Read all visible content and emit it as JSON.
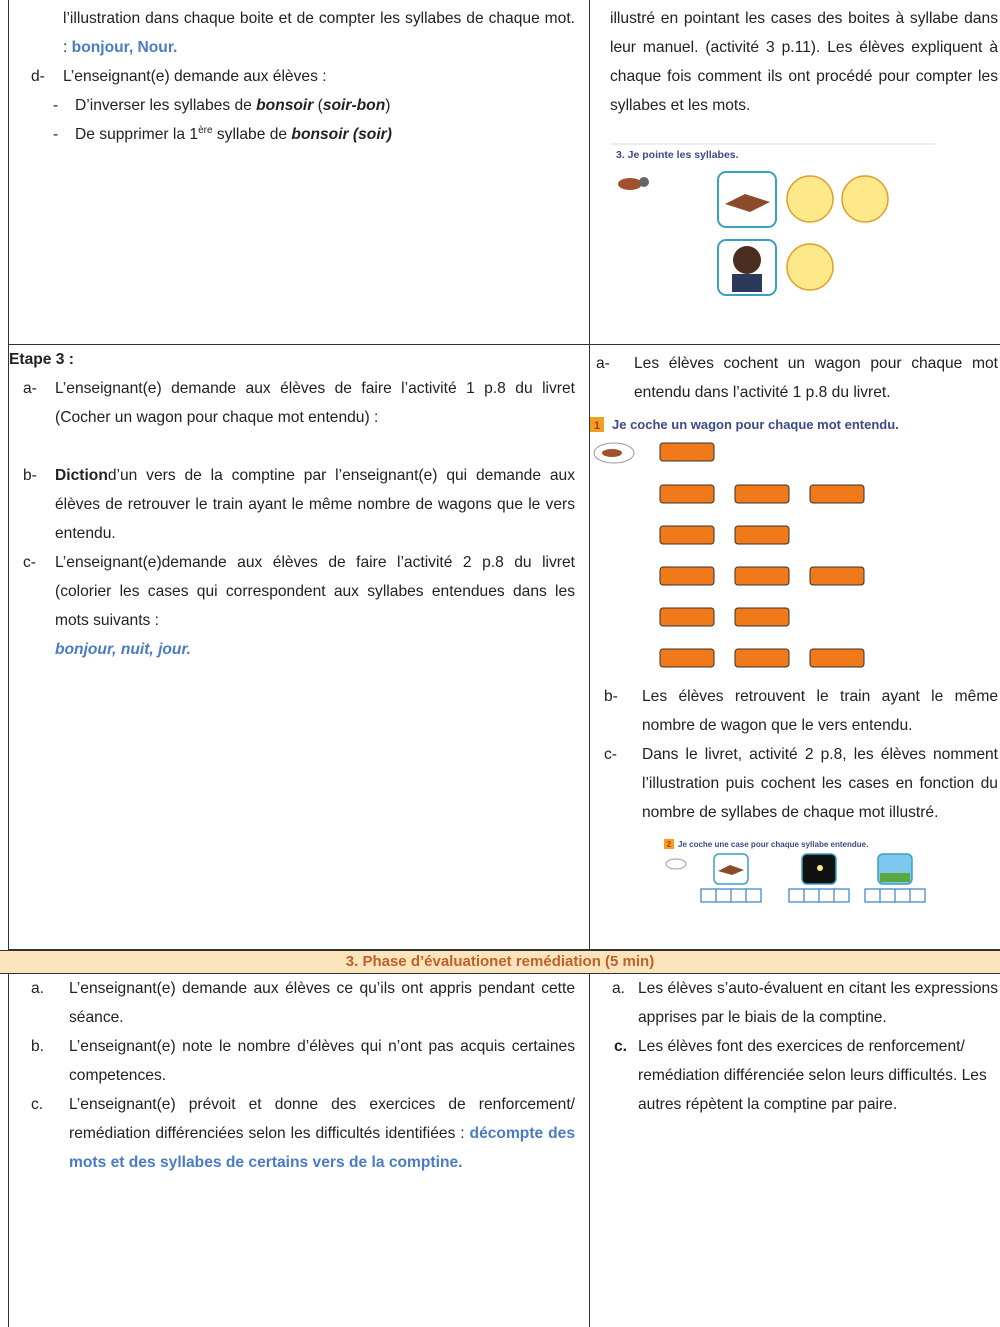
{
  "row1": {
    "left": {
      "intro": [
        "l’illustration dans chaque boite et de compter les syllabes de chaque mot. : ",
        "bonjour, Nour."
      ],
      "item_d": {
        "marker": "d-",
        "text": "L’enseignant(e) demande aux élèves :",
        "sub1": [
          "-",
          "D’inverser les syllabes de ",
          "bonsoir",
          " (",
          "soir-bon",
          ")"
        ],
        "sub2": [
          "-",
          "De supprimer la 1",
          "ère",
          " syllabe de ",
          "bonsoir (soir)"
        ]
      }
    },
    "right": {
      "text": "illustré en pointant les cases des boites à syllabe dans leur manuel. (activité 3 p.11). Les élèves expliquent à chaque fois comment ils ont procédé pour compter les syllabes et les mots.",
      "figure_caption": "3. Je pointe les syllabes."
    }
  },
  "row2": {
    "left": {
      "heading": "Etape 3 :",
      "items": [
        {
          "marker": "a-",
          "text": [
            "L’enseignant(e) demande aux élèves de faire l’activité 1 p.8 du livret (Cocher un wagon pour chaque mot entendu) :"
          ]
        },
        {
          "marker": "b-",
          "text": [
            "Diction",
            "d’un vers de la comptine par l’enseignant(e) qui demande aux élèves de retrouver le train ayant le même nombre de wagons que le vers entendu."
          ]
        },
        {
          "marker": "c-",
          "text": [
            "L’enseignant(e)demande aux élèves de faire l’activité 2 p.8 du livret (colorier les cases qui correspondent aux syllabes entendues dans les mots suivants :",
            "bonjour, nuit, jour."
          ]
        }
      ]
    },
    "right": {
      "item_a": {
        "marker": "a-",
        "text": "Les élèves cochent un wagon pour chaque mot entendu dans l’activité 1 p.8 du livret."
      },
      "figure1": {
        "number": "1",
        "caption": "Je coche un wagon pour chaque mot entendu."
      },
      "item_b": {
        "marker": "b-",
        "text": "Les élèves retrouvent le train ayant le même nombre de wagon que le vers entendu."
      },
      "item_c": {
        "marker": "c-",
        "text": "Dans le livret, activité 2 p.8, les élèves nomment l’illustration puis cochent les cases en fonction du nombre de syllabes de chaque mot illustré."
      },
      "figure2": {
        "number": "2",
        "caption": "Je coche une case pour chaque syllabe entendue."
      }
    }
  },
  "phase_header": "3. Phase d’évaluationet remédiation (5 min)",
  "row4": {
    "left": [
      {
        "marker": "a.",
        "text": [
          "L’enseignant(e) demande aux élèves ce qu’ils ont appris pendant cette séance."
        ]
      },
      {
        "marker": "b.",
        "text": [
          "L’enseignant(e) note le nombre d’élèves qui n’ont pas acquis certaines competences."
        ]
      },
      {
        "marker": "c.",
        "text": [
          "L’enseignant(e) prévoit et donne des exercices de renforcement/ remédiation différenciées selon les difficultés identifiées : ",
          "décompte des mots et des syllabes de certains vers de la comptine."
        ]
      }
    ],
    "right": [
      {
        "marker": "a.",
        "text": "Les élèves s’auto-évaluent en citant les expressions apprises par le biais de la comptine."
      },
      {
        "marker": "c.",
        "text": "Les élèves font des exercices de renforcement/ remédiation différenciée selon leurs difficultés. Les autres répètent la comptine par paire."
      }
    ]
  }
}
